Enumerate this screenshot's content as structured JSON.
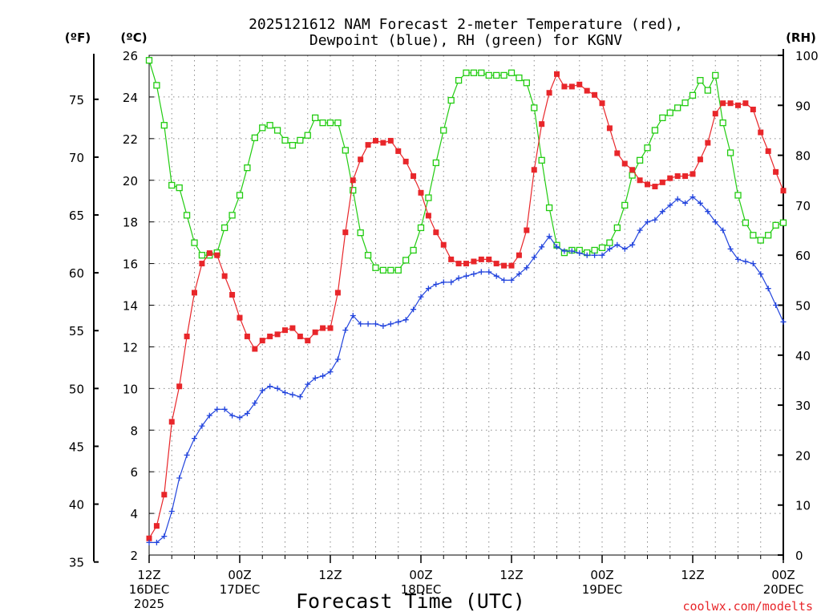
{
  "chart_data": {
    "type": "line",
    "title_line1": "2025121612 NAM Forecast 2-meter Temperature (red),",
    "title_line2": "Dewpoint (blue), RH (green) for KGNV",
    "unit_left_f": "(ºF)",
    "unit_left_c": "(ºC)",
    "unit_right": "(RH)",
    "xlabel": "Forecast Time (UTC)",
    "credit": "coolwx.com/modelts",
    "x_range_hours": [
      0,
      84
    ],
    "celsius_range": [
      2,
      26
    ],
    "rh_range": [
      0,
      100
    ],
    "fahrenheit_ticks": [
      "35",
      "40",
      "45",
      "50",
      "55",
      "60",
      "65",
      "70",
      "75"
    ],
    "celsius_ticks": [
      "2",
      "4",
      "6",
      "8",
      "10",
      "12",
      "14",
      "16",
      "18",
      "20",
      "22",
      "24",
      "26"
    ],
    "rh_ticks": [
      "0",
      "10",
      "20",
      "30",
      "40",
      "50",
      "60",
      "70",
      "80",
      "90",
      "100"
    ],
    "x_ticks": [
      {
        "hour": 0,
        "line1": "12Z",
        "line2": "16DEC",
        "line3": "2025"
      },
      {
        "hour": 12,
        "line1": "00Z",
        "line2": "17DEC",
        "line3": ""
      },
      {
        "hour": 24,
        "line1": "12Z",
        "line2": "",
        "line3": ""
      },
      {
        "hour": 36,
        "line1": "00Z",
        "line2": "18DEC",
        "line3": ""
      },
      {
        "hour": 48,
        "line1": "12Z",
        "line2": "",
        "line3": ""
      },
      {
        "hour": 60,
        "line1": "00Z",
        "line2": "19DEC",
        "line3": ""
      },
      {
        "hour": 72,
        "line1": "12Z",
        "line2": "",
        "line3": ""
      },
      {
        "hour": 84,
        "line1": "00Z",
        "line2": "20DEC",
        "line3": ""
      }
    ],
    "hours": [
      0,
      1,
      2,
      3,
      4,
      5,
      6,
      7,
      8,
      9,
      10,
      11,
      12,
      13,
      14,
      15,
      16,
      17,
      18,
      19,
      20,
      21,
      22,
      23,
      24,
      25,
      26,
      27,
      28,
      29,
      30,
      31,
      32,
      33,
      34,
      35,
      36,
      37,
      38,
      39,
      40,
      41,
      42,
      43,
      44,
      45,
      46,
      47,
      48,
      49,
      50,
      51,
      52,
      53,
      54,
      55,
      56,
      57,
      58,
      59,
      60,
      61,
      62,
      63,
      64,
      65,
      66,
      67,
      68,
      69,
      70,
      71,
      72,
      73,
      74,
      75,
      76,
      77,
      78,
      79,
      80,
      81,
      82,
      83,
      84
    ],
    "series": [
      {
        "name": "Temperature",
        "units": "C",
        "color": "#e8262a",
        "marker": "filled-square",
        "values": [
          2.8,
          3.4,
          4.9,
          8.4,
          10.1,
          12.5,
          14.6,
          16.0,
          16.5,
          16.4,
          15.4,
          14.5,
          13.4,
          12.5,
          11.9,
          12.3,
          12.5,
          12.6,
          12.8,
          12.9,
          12.5,
          12.3,
          12.7,
          12.9,
          12.9,
          14.6,
          17.5,
          20.0,
          21.0,
          21.7,
          21.9,
          21.8,
          21.9,
          21.4,
          20.9,
          20.2,
          19.4,
          18.3,
          17.5,
          16.9,
          16.2,
          16.0,
          16.0,
          16.1,
          16.2,
          16.2,
          16.0,
          15.9,
          15.9,
          16.4,
          17.6,
          20.5,
          22.7,
          24.2,
          25.1,
          24.5,
          24.5,
          24.6,
          24.3,
          24.1,
          23.7,
          22.5,
          21.3,
          20.8,
          20.5,
          20.0,
          19.8,
          19.7,
          19.9,
          20.1,
          20.2,
          20.2,
          20.3,
          21.0,
          21.8,
          23.2,
          23.7,
          23.7,
          23.6,
          23.7,
          23.4,
          22.3,
          21.4,
          20.4,
          19.5
        ]
      },
      {
        "name": "Dewpoint",
        "units": "C",
        "color": "#2244dd",
        "marker": "plus",
        "values": [
          2.6,
          2.6,
          2.9,
          4.1,
          5.7,
          6.8,
          7.6,
          8.2,
          8.7,
          9.0,
          9.0,
          8.7,
          8.6,
          8.8,
          9.3,
          9.9,
          10.1,
          10.0,
          9.8,
          9.7,
          9.6,
          10.2,
          10.5,
          10.6,
          10.8,
          11.4,
          12.8,
          13.5,
          13.1,
          13.1,
          13.1,
          13.0,
          13.1,
          13.2,
          13.3,
          13.8,
          14.4,
          14.8,
          15.0,
          15.1,
          15.1,
          15.3,
          15.4,
          15.5,
          15.6,
          15.6,
          15.4,
          15.2,
          15.2,
          15.5,
          15.8,
          16.3,
          16.8,
          17.3,
          16.8,
          16.6,
          16.6,
          16.5,
          16.4,
          16.4,
          16.4,
          16.7,
          16.9,
          16.7,
          16.9,
          17.6,
          18.0,
          18.1,
          18.5,
          18.8,
          19.1,
          18.9,
          19.2,
          18.9,
          18.5,
          18.0,
          17.6,
          16.7,
          16.2,
          16.1,
          16.0,
          15.5,
          14.8,
          14.0,
          13.2
        ]
      },
      {
        "name": "RH",
        "units": "%",
        "color": "#22cc11",
        "marker": "open-square",
        "values": [
          99,
          94,
          86,
          74,
          73.5,
          68,
          62.5,
          60,
          60,
          60.5,
          65.5,
          68,
          72,
          77.5,
          83.5,
          85.5,
          86,
          85,
          83,
          82,
          83,
          84,
          87.5,
          86.5,
          86.5,
          86.5,
          81,
          73,
          64.5,
          60,
          57.5,
          57,
          57,
          57,
          59,
          61,
          65.5,
          71.5,
          78.5,
          85,
          91,
          95,
          96.5,
          96.5,
          96.5,
          96,
          96,
          96,
          96.5,
          95.5,
          94.5,
          89.5,
          79,
          69.5,
          62,
          60.5,
          61,
          61,
          60.5,
          61,
          61.5,
          62.5,
          65.5,
          70,
          76,
          79,
          81.5,
          85,
          87.5,
          88.5,
          89.5,
          90.5,
          92,
          95,
          93,
          96,
          86.5,
          80.5,
          72,
          66.5,
          64,
          63,
          64,
          66,
          66.5
        ]
      }
    ]
  }
}
